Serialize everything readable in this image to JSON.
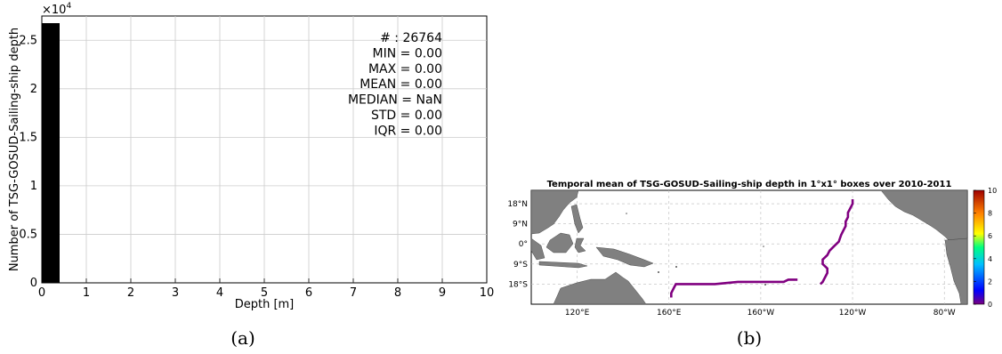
{
  "chart_data": [
    {
      "panel": "(a)",
      "type": "bar",
      "xlabel": "Depth [m]",
      "ylabel": "Number of TSG-GOSUD-Sailing-ship depth",
      "y_multiplier": "×10",
      "y_multiplier_exp": "4",
      "xlim": [
        0,
        10
      ],
      "ylim": [
        0,
        27500
      ],
      "xticks": [
        "0",
        "1",
        "2",
        "3",
        "4",
        "5",
        "6",
        "7",
        "8",
        "9",
        "10"
      ],
      "yticks": [
        "0",
        "0.5",
        "1",
        "1.5",
        "2",
        "2.5"
      ],
      "grid": true,
      "bars": [
        {
          "x0": 0,
          "x1": 0.4,
          "value": 26764
        }
      ],
      "stats": [
        "# : 26764",
        "MIN = 0.00",
        "MAX =  0.00",
        "MEAN = 0.00",
        "MEDIAN = NaN",
        "STD = 0.00",
        "IQR = 0.00"
      ]
    },
    {
      "panel": "(b)",
      "type": "heatmap",
      "title": "Temporal mean of TSG-GOSUD-Sailing-ship depth in 1°x1° boxes over 2010-2011",
      "lon_range": [
        100,
        290
      ],
      "lat_range": [
        -27,
        24
      ],
      "lon_ticks": [
        {
          "lon": 120,
          "label": "120°E"
        },
        {
          "lon": 160,
          "label": "160°E"
        },
        {
          "lon": 200,
          "label": "160°W"
        },
        {
          "lon": 240,
          "label": "120°W"
        },
        {
          "lon": 280,
          "label": "80°W"
        }
      ],
      "lat_ticks": [
        {
          "lat": 18,
          "label": "18°N"
        },
        {
          "lat": 9,
          "label": "9°N"
        },
        {
          "lat": 0,
          "label": "0°"
        },
        {
          "lat": -9,
          "label": "9°S"
        },
        {
          "lat": -18,
          "label": "18°S"
        }
      ],
      "colorbar": {
        "min": 0,
        "max": 10,
        "ticks": [
          "0",
          "2",
          "4",
          "6",
          "8",
          "10"
        ]
      },
      "track_value": 0,
      "track": [
        [
          161,
          -24
        ],
        [
          161,
          -22
        ],
        [
          162,
          -20
        ],
        [
          163,
          -18
        ],
        [
          165,
          -18
        ],
        [
          170,
          -18
        ],
        [
          175,
          -18
        ],
        [
          180,
          -18
        ],
        [
          185,
          -17.5
        ],
        [
          190,
          -17
        ],
        [
          195,
          -17
        ],
        [
          200,
          -17
        ],
        [
          205,
          -17
        ],
        [
          210,
          -17
        ],
        [
          212,
          -16
        ],
        [
          216,
          -16
        ],
        [
          226,
          -18
        ],
        [
          227,
          -17
        ],
        [
          228,
          -15
        ],
        [
          229,
          -13
        ],
        [
          229,
          -11
        ],
        [
          227,
          -9
        ],
        [
          227,
          -7
        ],
        [
          229,
          -5
        ],
        [
          230,
          -3
        ],
        [
          232,
          -1
        ],
        [
          234,
          1
        ],
        [
          235,
          4
        ],
        [
          236,
          6
        ],
        [
          237,
          8
        ],
        [
          237,
          10
        ],
        [
          238,
          12
        ],
        [
          238,
          14
        ],
        [
          239,
          16
        ],
        [
          240,
          18
        ],
        [
          240,
          20
        ]
      ]
    }
  ],
  "captions": {
    "a": "(a)",
    "b": "(b)"
  },
  "colors": {
    "bar": "#000000",
    "track": "#800080",
    "land": "#808080",
    "grid": "#cccccc"
  }
}
